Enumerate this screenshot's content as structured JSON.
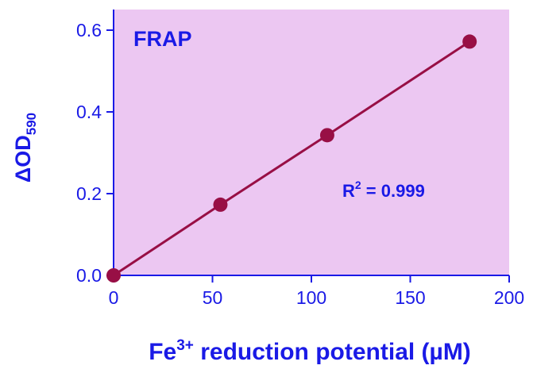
{
  "chart_data": {
    "type": "scatter",
    "title": "FRAP",
    "xlabel": {
      "base": "Fe",
      "superscript": "3+",
      "rest": " reduction potential (µM)"
    },
    "ylabel": {
      "base": "ΔOD",
      "subscript": "590"
    },
    "xlim": [
      0,
      200
    ],
    "ylim": [
      0,
      0.6
    ],
    "xticks": [
      "0",
      "50",
      "100",
      "150",
      "200"
    ],
    "yticks": [
      "0.0",
      "0.2",
      "0.4",
      "0.6"
    ],
    "series": [
      {
        "x": [
          0,
          54,
          108,
          180
        ],
        "y": [
          0.0,
          0.173,
          0.343,
          0.572
        ],
        "marker": "circle",
        "line": true
      }
    ],
    "annotation": {
      "base": "R",
      "superscript": "2",
      "rest": " = 0.999"
    },
    "grid": false,
    "colors": {
      "plot_background": "#ecc7f2",
      "series": "#980f45",
      "axis": "#1a1ae6",
      "text": "#1a1ae6"
    }
  }
}
